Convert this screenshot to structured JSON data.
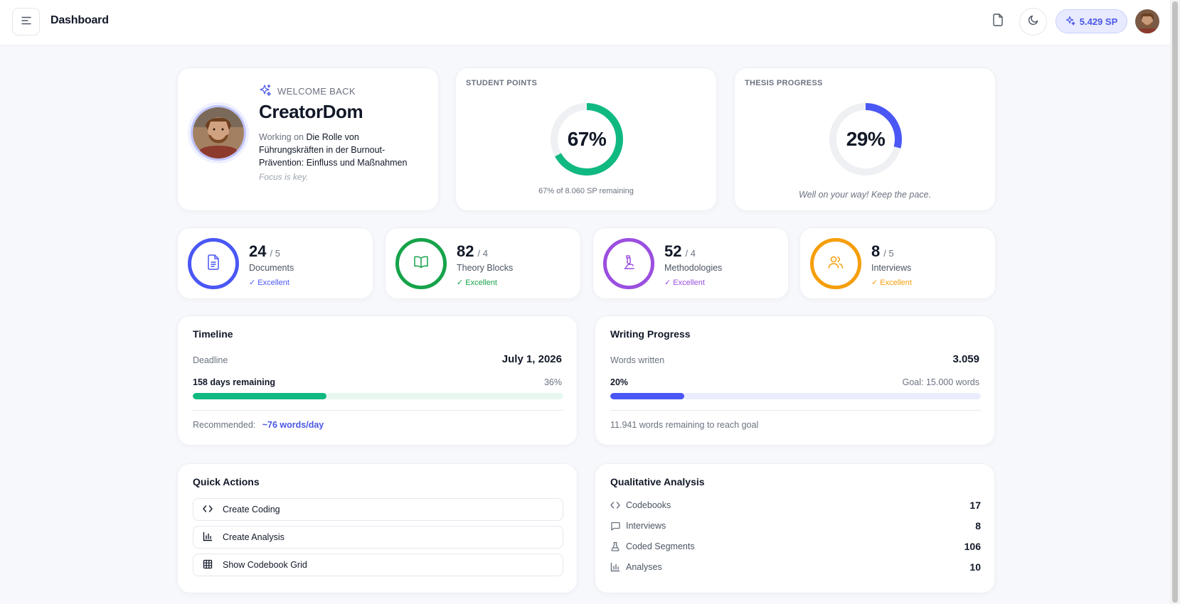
{
  "header": {
    "title": "Dashboard",
    "points": "5.429 SP"
  },
  "welcome": {
    "kicker": "WELCOME BACK",
    "name": "CreatorDom",
    "working_prefix": "Working on",
    "thesis_title": "Die Rolle von Führungskräften in der Burnout-Prävention: Einfluss und Maßnahmen",
    "motto": "Focus is key."
  },
  "student_points": {
    "label": "STUDENT POINTS",
    "percent_text": "67%",
    "percent": 0.67,
    "caption": "67% of 8.060 SP remaining",
    "color": "#10b981"
  },
  "thesis_progress": {
    "label": "THESIS PROGRESS",
    "percent_text": "29%",
    "percent": 0.29,
    "caption": "Well on your way! Keep the pace.",
    "color": "#4a57f5"
  },
  "stats": [
    {
      "value": "24",
      "total": "/ 5",
      "label": "Documents",
      "badge": "✓ Excellent",
      "color": "#4a57f5",
      "icon": "document-icon"
    },
    {
      "value": "82",
      "total": "/ 4",
      "label": "Theory Blocks",
      "badge": "✓ Excellent",
      "color": "#16a34a",
      "icon": "book-icon"
    },
    {
      "value": "52",
      "total": "/ 4",
      "label": "Methodologies",
      "badge": "✓ Excellent",
      "color": "#9b4fe0",
      "icon": "microscope-icon"
    },
    {
      "value": "8",
      "total": "/ 5",
      "label": "Interviews",
      "badge": "✓ Excellent",
      "color": "#f59e0b",
      "icon": "users-icon"
    }
  ],
  "timeline": {
    "title": "Timeline",
    "deadline_label": "Deadline",
    "deadline_value": "July 1, 2026",
    "remaining": "158 days remaining",
    "percent_text": "36%",
    "percent": 0.36,
    "recommended_label": "Recommended:",
    "recommended_value": "~76 words/day",
    "color": "#10b981",
    "track_color": "#e8f7f0"
  },
  "writing": {
    "title": "Writing Progress",
    "words_label": "Words written",
    "words_value": "3.059",
    "percent_text": "20%",
    "percent": 0.2,
    "goal": "Goal: 15.000 words",
    "remaining": "11.941 words remaining to reach goal",
    "color": "#4a57f5",
    "track_color": "#ebedff"
  },
  "quick_actions": {
    "title": "Quick Actions",
    "items": [
      {
        "label": "Create Coding",
        "icon": "code-icon"
      },
      {
        "label": "Create Analysis",
        "icon": "bar-chart-icon"
      },
      {
        "label": "Show Codebook Grid",
        "icon": "grid-icon"
      }
    ]
  },
  "qualitative": {
    "title": "Qualitative Analysis",
    "items": [
      {
        "label": "Codebooks",
        "value": "17",
        "icon": "code-icon"
      },
      {
        "label": "Interviews",
        "value": "8",
        "icon": "chat-icon"
      },
      {
        "label": "Coded Segments",
        "value": "106",
        "icon": "flask-icon"
      },
      {
        "label": "Analyses",
        "value": "10",
        "icon": "bar-chart-icon"
      }
    ]
  }
}
